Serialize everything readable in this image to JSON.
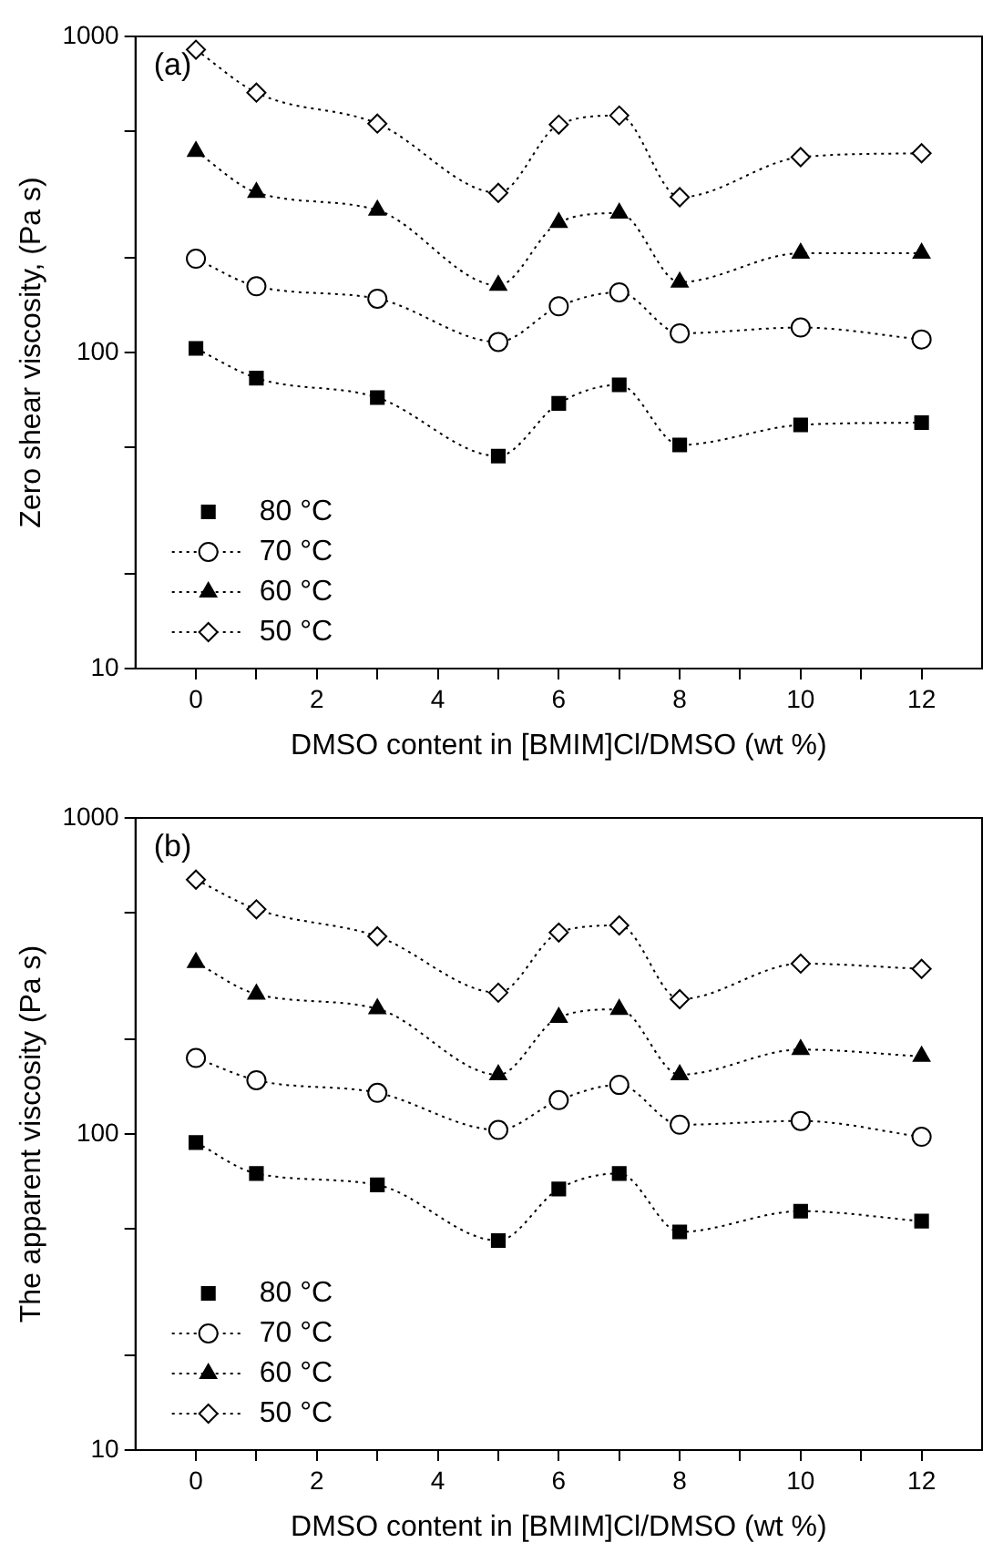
{
  "chart_data": [
    {
      "type": "line",
      "xlabel": "DMSO content in [BMIM]Cl/DMSO (wt %)",
      "ylabel": "Zero shear viscosity, (Pa s)",
      "annotations": [
        "(a)"
      ],
      "log": "y",
      "xlim": [
        -1,
        13
      ],
      "xticks": [
        0,
        {
          "value": 1,
          "label": null
        },
        2,
        {
          "value": 3,
          "label": null
        },
        4,
        {
          "value": 5,
          "label": null
        },
        6,
        {
          "value": 7,
          "label": null
        },
        8,
        {
          "value": 9,
          "label": null
        },
        10,
        {
          "value": 11,
          "label": null
        },
        12
      ],
      "ylim": [
        10,
        1000
      ],
      "yticks": [
        10,
        {
          "value": 20,
          "label": null
        },
        {
          "value": 50,
          "label": null
        },
        100,
        {
          "value": 200,
          "label": null
        },
        {
          "value": 500,
          "label": null
        },
        1000
      ],
      "legend": "bottom left",
      "grid": false,
      "line_style": "dotted",
      "x": [
        0,
        1,
        3,
        5,
        6,
        7,
        8,
        10,
        12
      ],
      "series": [
        {
          "name": "80 °C",
          "color": "#000000",
          "marker": "square",
          "values": [
            103,
            83,
            72,
            47,
            69,
            79,
            51,
            59,
            60
          ]
        },
        {
          "name": "70 °C",
          "color": "#000000",
          "marker": "circle",
          "values": [
            198,
            162,
            148,
            108,
            140,
            155,
            115,
            120,
            110
          ]
        },
        {
          "name": "60 °C",
          "color": "#000000",
          "marker": "triangle",
          "values": [
            433,
            321,
            282,
            163,
            258,
            276,
            167,
            206,
            206
          ]
        },
        {
          "name": "50 °C",
          "color": "#000000",
          "marker": "diamond",
          "values": [
            908,
            664,
            530,
            320,
            526,
            562,
            310,
            415,
            427
          ]
        }
      ]
    },
    {
      "type": "line",
      "xlabel": "DMSO content in [BMIM]Cl/DMSO (wt %)",
      "ylabel": "The apparent viscosity (Pa s)",
      "annotations": [
        "(b)"
      ],
      "log": "y",
      "xlim": [
        -1,
        13
      ],
      "xticks": [
        0,
        {
          "value": 1,
          "label": null
        },
        2,
        {
          "value": 3,
          "label": null
        },
        4,
        {
          "value": 5,
          "label": null
        },
        6,
        {
          "value": 7,
          "label": null
        },
        8,
        {
          "value": 9,
          "label": null
        },
        10,
        {
          "value": 11,
          "label": null
        },
        12
      ],
      "ylim": [
        10,
        1000
      ],
      "yticks": [
        10,
        {
          "value": 20,
          "label": null
        },
        {
          "value": 50,
          "label": null
        },
        100,
        {
          "value": 200,
          "label": null
        },
        {
          "value": 500,
          "label": null
        },
        1000
      ],
      "legend": "bottom left",
      "grid": false,
      "line_style": "dotted",
      "x": [
        0,
        1,
        3,
        5,
        6,
        7,
        8,
        10,
        12
      ],
      "series": [
        {
          "name": "80 °C",
          "color": "#000000",
          "marker": "square",
          "values": [
            94,
            75,
            69,
            46,
            67,
            75,
            49,
            57,
            53
          ]
        },
        {
          "name": "70 °C",
          "color": "#000000",
          "marker": "circle",
          "values": [
            174,
            148,
            135,
            103,
            128,
            143,
            107,
            110,
            98
          ]
        },
        {
          "name": "60 °C",
          "color": "#000000",
          "marker": "triangle",
          "values": [
            349,
            277,
            249,
            154,
            234,
            248,
            154,
            185,
            176
          ]
        },
        {
          "name": "50 °C",
          "color": "#000000",
          "marker": "diamond",
          "values": [
            638,
            514,
            422,
            280,
            434,
            457,
            267,
            346,
            333
          ]
        }
      ]
    }
  ]
}
